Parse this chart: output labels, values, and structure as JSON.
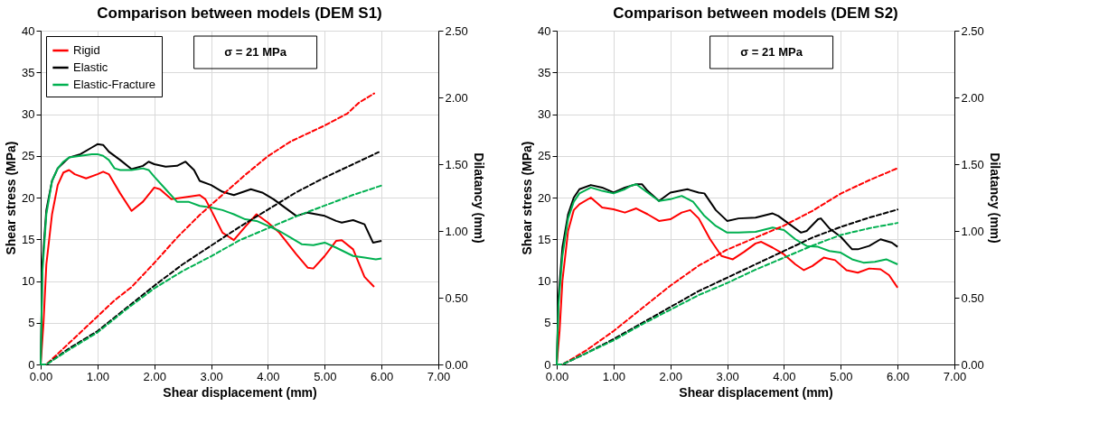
{
  "chart_data": [
    {
      "type": "line",
      "title": "Comparison between models (DEM S1)",
      "xlabel": "Shear displacement  (mm)",
      "ylabel": "Shear stress (MPa)",
      "y2label": "Dilatancy  (mm)",
      "xlim": [
        0,
        7
      ],
      "xticks": [
        {
          "value": 0,
          "label": "0.00"
        },
        {
          "value": 1,
          "label": "1.00"
        },
        {
          "value": 2,
          "label": "2.00"
        },
        {
          "value": 3,
          "label": "3.00"
        },
        {
          "value": 4,
          "label": "4.00"
        },
        {
          "value": 5,
          "label": "5.00"
        },
        {
          "value": 6,
          "label": "6.00"
        },
        {
          "value": 7,
          "label": "7.00"
        }
      ],
      "ylim": [
        0,
        40
      ],
      "yticks": [
        0,
        5,
        10,
        15,
        20,
        25,
        30,
        35,
        40
      ],
      "y2lim": [
        0,
        2.5
      ],
      "y2ticks": [
        {
          "value": 0,
          "label": "0.00"
        },
        {
          "value": 0.5,
          "label": "0.50"
        },
        {
          "value": 1,
          "label": "1.00"
        },
        {
          "value": 1.5,
          "label": "1.50"
        },
        {
          "value": 2,
          "label": "2.00"
        },
        {
          "value": 2.5,
          "label": "2.50"
        }
      ],
      "grid": true,
      "legend": "top left",
      "annotations": [
        "σ = 21 MPa"
      ],
      "series": [
        {
          "name": "Rigid",
          "color": "#ff0000",
          "line_style": "solid",
          "x": [
            0,
            0.05,
            0.1,
            0.2,
            0.3,
            0.4,
            0.5,
            0.6,
            0.8,
            1.0,
            1.1,
            1.2,
            1.4,
            1.6,
            1.8,
            2.0,
            2.1,
            2.3,
            2.5,
            2.8,
            2.9,
            3.0,
            3.2,
            3.4,
            3.6,
            3.8,
            4.0,
            4.2,
            4.5,
            4.7,
            4.8,
            5.0,
            5.2,
            5.3,
            5.5,
            5.7,
            5.87
          ],
          "values": [
            0,
            5,
            12,
            18,
            21.5,
            23,
            23.3,
            22.8,
            22.3,
            22.8,
            23.1,
            22.8,
            20.5,
            18.4,
            19.5,
            21.2,
            21,
            19.8,
            20,
            20.3,
            19.8,
            18.5,
            15.8,
            14.9,
            16.5,
            18,
            17,
            15.8,
            13.2,
            11.6,
            11.5,
            13,
            14.8,
            14.9,
            13.8,
            10.5,
            9.3
          ]
        },
        {
          "name": "Elastic",
          "color": "#000000",
          "line_style": "solid",
          "x": [
            0,
            0.03,
            0.1,
            0.2,
            0.3,
            0.5,
            0.7,
            0.9,
            1.0,
            1.1,
            1.2,
            1.4,
            1.6,
            1.8,
            1.9,
            2.0,
            2.2,
            2.4,
            2.55,
            2.7,
            2.8,
            3.0,
            3.2,
            3.4,
            3.7,
            3.9,
            4.1,
            4.3,
            4.5,
            4.7,
            5.0,
            5.2,
            5.3,
            5.5,
            5.7,
            5.85,
            6.0
          ],
          "values": [
            0,
            12,
            18.5,
            22,
            23.5,
            24.8,
            25.2,
            26,
            26.4,
            26.3,
            25.5,
            24.5,
            23.4,
            23.8,
            24.3,
            24,
            23.7,
            23.8,
            24.3,
            23.3,
            22,
            21.5,
            20.7,
            20.3,
            21,
            20.6,
            19.8,
            18.8,
            17.8,
            18.2,
            17.8,
            17.2,
            17,
            17.3,
            16.8,
            14.6,
            14.8
          ]
        },
        {
          "name": "Elastic-Fracture",
          "color": "#00b050",
          "line_style": "solid",
          "x": [
            0,
            0.03,
            0.1,
            0.2,
            0.3,
            0.4,
            0.5,
            0.7,
            0.9,
            1.0,
            1.1,
            1.2,
            1.3,
            1.4,
            1.6,
            1.8,
            1.9,
            2.0,
            2.2,
            2.4,
            2.6,
            2.8,
            3.0,
            3.2,
            3.4,
            3.6,
            3.8,
            4.0,
            4.2,
            4.4,
            4.6,
            4.8,
            5.0,
            5.2,
            5.5,
            5.7,
            5.9,
            6.0
          ],
          "values": [
            0,
            11,
            18,
            22,
            23.5,
            24.3,
            24.8,
            25,
            25.2,
            25.2,
            25,
            24.5,
            23.5,
            23.3,
            23.3,
            23.5,
            23.3,
            22.5,
            21,
            19.5,
            19.5,
            19,
            18.8,
            18.5,
            18,
            17.4,
            17.2,
            16.6,
            16,
            15.2,
            14.4,
            14.3,
            14.6,
            14,
            13,
            12.8,
            12.6,
            12.7
          ]
        },
        {
          "color": "#ff0000",
          "axis": "y2",
          "line_style": "dashed",
          "x": [
            0,
            0.1,
            0.3,
            0.5,
            0.8,
            1.0,
            1.3,
            1.6,
            2.0,
            2.4,
            2.8,
            3.2,
            3.6,
            4.0,
            4.4,
            4.8,
            5.0,
            5.4,
            5.6,
            5.87
          ],
          "values": [
            0,
            0,
            0.08,
            0.16,
            0.28,
            0.36,
            0.48,
            0.58,
            0.76,
            0.95,
            1.12,
            1.27,
            1.42,
            1.56,
            1.67,
            1.75,
            1.79,
            1.88,
            1.96,
            2.03
          ]
        },
        {
          "color": "#000000",
          "axis": "y2",
          "line_style": "dashed",
          "x": [
            0,
            0.1,
            0.5,
            1.0,
            1.5,
            2.0,
            2.5,
            3.0,
            3.5,
            4.0,
            4.5,
            5.0,
            5.5,
            5.95
          ],
          "values": [
            0,
            0,
            0.12,
            0.25,
            0.42,
            0.59,
            0.75,
            0.89,
            1.03,
            1.16,
            1.29,
            1.4,
            1.5,
            1.59
          ]
        },
        {
          "color": "#00b050",
          "axis": "y2",
          "line_style": "dashed",
          "x": [
            0,
            0.1,
            0.5,
            1.0,
            1.5,
            2.0,
            2.5,
            3.0,
            3.5,
            4.0,
            4.5,
            5.0,
            5.5,
            6.0
          ],
          "values": [
            0,
            0,
            0.11,
            0.24,
            0.41,
            0.57,
            0.7,
            0.81,
            0.93,
            1.02,
            1.11,
            1.19,
            1.27,
            1.34
          ]
        }
      ]
    },
    {
      "type": "line",
      "title": "Comparison between models (DEM S2)",
      "xlabel": "Shear displacement  (mm)",
      "ylabel": "Shear stress (MPa)",
      "y2label": "Dilatancy  (mm)",
      "xlim": [
        0,
        7
      ],
      "xticks": [
        {
          "value": 0,
          "label": "0.00"
        },
        {
          "value": 1,
          "label": "1.00"
        },
        {
          "value": 2,
          "label": "2.00"
        },
        {
          "value": 3,
          "label": "3.00"
        },
        {
          "value": 4,
          "label": "4.00"
        },
        {
          "value": 5,
          "label": "5.00"
        },
        {
          "value": 6,
          "label": "6.00"
        },
        {
          "value": 7,
          "label": "7.00"
        }
      ],
      "ylim": [
        0,
        40
      ],
      "yticks": [
        0,
        5,
        10,
        15,
        20,
        25,
        30,
        35,
        40
      ],
      "y2lim": [
        0,
        2.5
      ],
      "y2ticks": [
        {
          "value": 0,
          "label": "0.00"
        },
        {
          "value": 0.5,
          "label": "0.50"
        },
        {
          "value": 1,
          "label": "1.00"
        },
        {
          "value": 1.5,
          "label": "1.50"
        },
        {
          "value": 2,
          "label": "2.00"
        },
        {
          "value": 2.5,
          "label": "2.50"
        }
      ],
      "grid": true,
      "legend": "top left",
      "annotations": [
        "σ = 21 MPa"
      ],
      "series": [
        {
          "name": "Rigid",
          "color": "#ff0000",
          "line_style": "solid",
          "x": [
            0,
            0.05,
            0.1,
            0.2,
            0.3,
            0.4,
            0.6,
            0.8,
            1.0,
            1.2,
            1.4,
            1.6,
            1.8,
            2.0,
            2.2,
            2.35,
            2.5,
            2.7,
            2.9,
            3.1,
            3.3,
            3.5,
            3.6,
            3.8,
            4.0,
            4.2,
            4.35,
            4.5,
            4.7,
            4.9,
            5.1,
            5.3,
            5.5,
            5.7,
            5.85,
            6.0
          ],
          "values": [
            0,
            4,
            10,
            16,
            18.5,
            19.2,
            20,
            18.8,
            18.6,
            18.2,
            18.7,
            18,
            17.2,
            17.4,
            18.2,
            18.5,
            17.5,
            15,
            13,
            12.6,
            13.5,
            14.5,
            14.7,
            14,
            13.2,
            12,
            11.3,
            11.8,
            12.8,
            12.5,
            11.3,
            11,
            11.5,
            11.4,
            10.7,
            9.2
          ]
        },
        {
          "name": "Elastic",
          "color": "#000000",
          "line_style": "solid",
          "x": [
            0,
            0.03,
            0.1,
            0.2,
            0.3,
            0.4,
            0.6,
            0.8,
            1.0,
            1.2,
            1.4,
            1.5,
            1.6,
            1.8,
            2.0,
            2.3,
            2.5,
            2.6,
            2.8,
            3.0,
            3.2,
            3.5,
            3.8,
            3.9,
            4.1,
            4.3,
            4.4,
            4.6,
            4.65,
            4.8,
            5.0,
            5.2,
            5.3,
            5.5,
            5.7,
            5.9,
            6.0
          ],
          "values": [
            0,
            8,
            14,
            18,
            20,
            21,
            21.5,
            21.2,
            20.6,
            21.2,
            21.6,
            21.6,
            20.8,
            19.6,
            20.6,
            21,
            20.6,
            20.5,
            18.5,
            17.2,
            17.5,
            17.6,
            18.1,
            17.8,
            16.8,
            15.8,
            16,
            17.4,
            17.5,
            16.3,
            15.3,
            13.8,
            13.8,
            14.2,
            15,
            14.6,
            14.1
          ]
        },
        {
          "name": "Elastic-Fracture",
          "color": "#00b050",
          "line_style": "solid",
          "x": [
            0,
            0.03,
            0.1,
            0.2,
            0.3,
            0.4,
            0.6,
            0.8,
            1.0,
            1.2,
            1.3,
            1.4,
            1.6,
            1.8,
            2.0,
            2.2,
            2.4,
            2.6,
            2.8,
            3.0,
            3.2,
            3.5,
            3.8,
            4.0,
            4.2,
            4.4,
            4.6,
            4.8,
            5.0,
            5.2,
            5.4,
            5.6,
            5.8,
            6.0
          ],
          "values": [
            0,
            7,
            13,
            17.5,
            19.5,
            20.5,
            21.2,
            20.8,
            20.5,
            21,
            21.4,
            21.6,
            20.6,
            19.6,
            19.8,
            20.2,
            19.5,
            17.8,
            16.6,
            15.8,
            15.8,
            15.9,
            16.4,
            16.1,
            15,
            14.2,
            14.1,
            13.6,
            13.4,
            12.6,
            12.2,
            12.3,
            12.6,
            12
          ]
        },
        {
          "color": "#ff0000",
          "axis": "y2",
          "line_style": "dashed",
          "x": [
            0,
            0.1,
            0.5,
            1.0,
            1.5,
            2.0,
            2.5,
            3.0,
            3.5,
            4.0,
            4.5,
            5.0,
            5.5,
            6.0
          ],
          "values": [
            0,
            0,
            0.1,
            0.25,
            0.42,
            0.59,
            0.74,
            0.86,
            0.95,
            1.04,
            1.15,
            1.28,
            1.38,
            1.47
          ]
        },
        {
          "color": "#000000",
          "axis": "y2",
          "line_style": "dashed",
          "x": [
            0,
            0.1,
            0.5,
            1.0,
            1.5,
            2.0,
            2.5,
            3.0,
            3.5,
            4.0,
            4.5,
            5.0,
            5.5,
            6.0
          ],
          "values": [
            0,
            0,
            0.08,
            0.19,
            0.31,
            0.43,
            0.55,
            0.65,
            0.75,
            0.85,
            0.95,
            1.03,
            1.1,
            1.16
          ]
        },
        {
          "color": "#00b050",
          "axis": "y2",
          "line_style": "dashed",
          "x": [
            0,
            0.1,
            0.5,
            1.0,
            1.5,
            2.0,
            2.5,
            3.0,
            3.5,
            4.0,
            4.5,
            5.0,
            5.5,
            6.0
          ],
          "values": [
            0,
            0,
            0.08,
            0.18,
            0.3,
            0.41,
            0.52,
            0.61,
            0.71,
            0.8,
            0.89,
            0.97,
            1.02,
            1.06
          ]
        }
      ]
    }
  ]
}
